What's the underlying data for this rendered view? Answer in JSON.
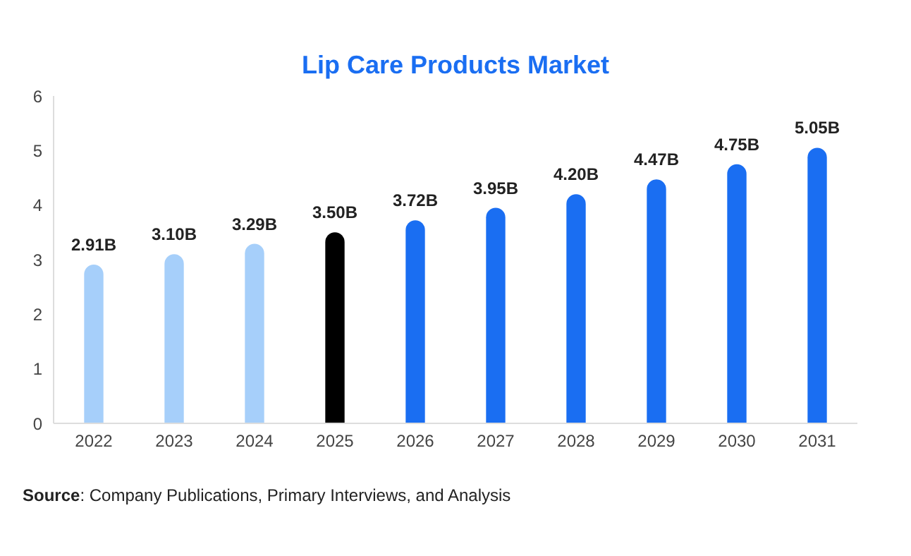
{
  "chart_data": {
    "type": "bar",
    "title": "Lip Care Products Market",
    "categories": [
      "2022",
      "2023",
      "2024",
      "2025",
      "2026",
      "2027",
      "2028",
      "2029",
      "2030",
      "2031"
    ],
    "values": [
      2.91,
      3.1,
      3.29,
      3.5,
      3.72,
      3.95,
      4.2,
      4.47,
      4.75,
      5.05
    ],
    "value_labels": [
      "2.91B",
      "3.10B",
      "3.29B",
      "3.50B",
      "3.72B",
      "3.95B",
      "4.20B",
      "4.47B",
      "4.75B",
      "5.05B"
    ],
    "colors": [
      "#a6cffa",
      "#a6cffa",
      "#a6cffa",
      "#000000",
      "#1a6ef2",
      "#1a6ef2",
      "#1a6ef2",
      "#1a6ef2",
      "#1a6ef2",
      "#1a6ef2"
    ],
    "ylim": [
      0,
      6
    ],
    "yticks": [
      0,
      1,
      2,
      3,
      4,
      5,
      6
    ],
    "grid": false,
    "annotations": [
      "Source: Company Publications, Primary Interviews, and Analysis"
    ]
  }
}
